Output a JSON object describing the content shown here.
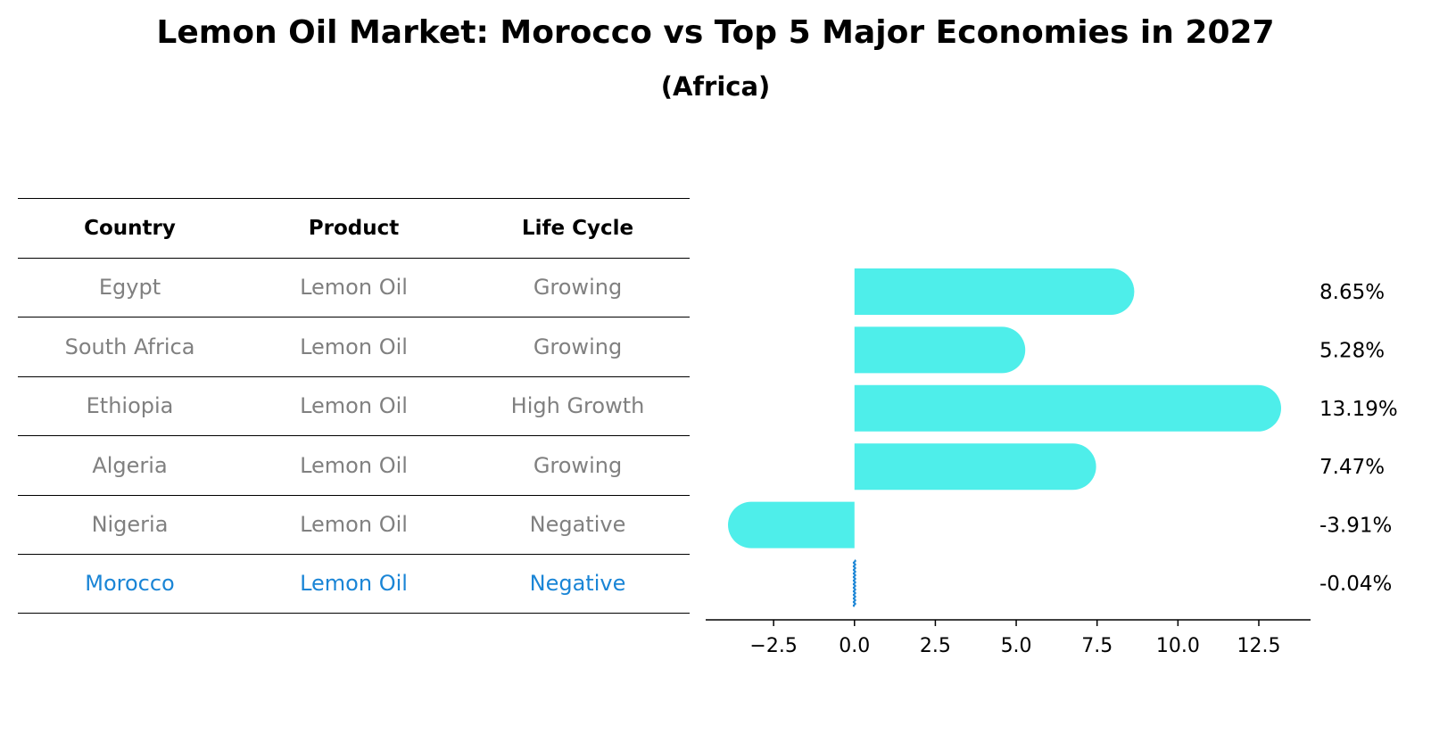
{
  "title": "Lemon Oil Market: Morocco vs Top 5 Major Economies in 2027",
  "subtitle": "(Africa)",
  "colors": {
    "bar": "#4eeeea",
    "highlight": "#1a85d6",
    "muted_text": "#808080"
  },
  "table": {
    "headers": [
      "Country",
      "Product",
      "Life Cycle"
    ],
    "rows": [
      {
        "country": "Egypt",
        "product": "Lemon Oil",
        "life_cycle": "Growing"
      },
      {
        "country": "South Africa",
        "product": "Lemon Oil",
        "life_cycle": "Growing"
      },
      {
        "country": "Ethiopia",
        "product": "Lemon Oil",
        "life_cycle": "High Growth"
      },
      {
        "country": "Algeria",
        "product": "Lemon Oil",
        "life_cycle": "Growing"
      },
      {
        "country": "Nigeria",
        "product": "Lemon Oil",
        "life_cycle": "Negative"
      },
      {
        "country": "Morocco",
        "product": "Lemon Oil",
        "life_cycle": "Negative"
      }
    ]
  },
  "chart_data": {
    "type": "bar",
    "orientation": "horizontal",
    "categories": [
      "Egypt",
      "South Africa",
      "Ethiopia",
      "Algeria",
      "Nigeria",
      "Morocco"
    ],
    "values": [
      8.65,
      5.28,
      13.19,
      7.47,
      -3.91,
      -0.04
    ],
    "value_labels": [
      "8.65%",
      "5.28%",
      "13.19%",
      "7.47%",
      "-3.91%",
      "-0.04%"
    ],
    "highlight_category": "Morocco",
    "xlim": [
      -4.6,
      14.1
    ],
    "xticks": [
      -2.5,
      0.0,
      2.5,
      5.0,
      7.5,
      10.0,
      12.5
    ],
    "xtick_labels": [
      "−2.5",
      "0.0",
      "2.5",
      "5.0",
      "7.5",
      "10.0",
      "12.5"
    ],
    "grid": false
  }
}
